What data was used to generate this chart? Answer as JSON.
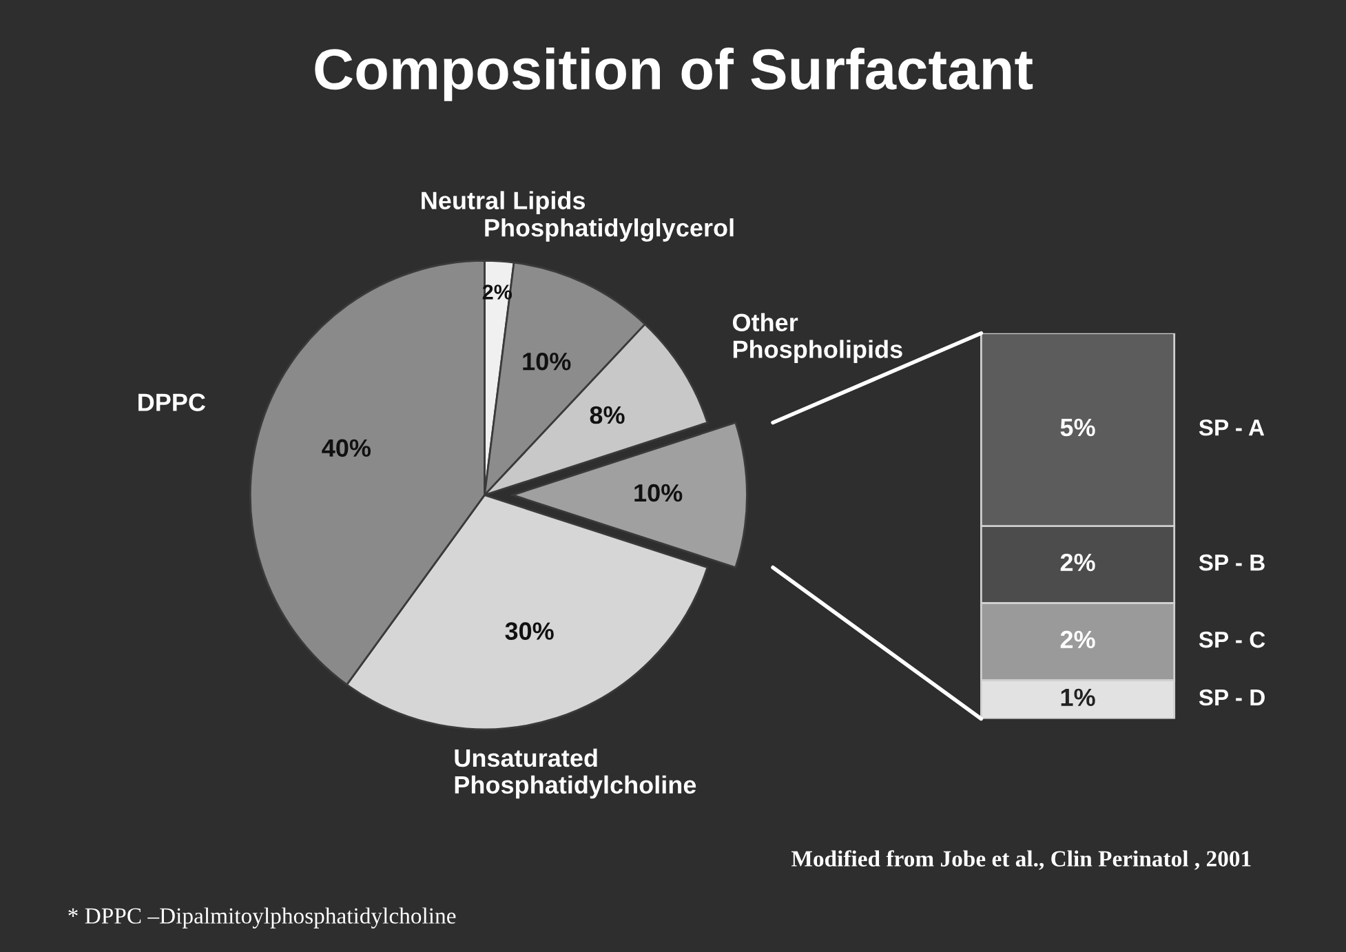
{
  "chart_data": [
    {
      "type": "pie",
      "title": "Composition of Surfactant",
      "categories": [
        "Neutral Lipids",
        "Phosphatidylglycerol",
        "Other\nPhospholipids",
        null,
        "Unsaturated\nPhosphatidylcholine",
        "DPPC"
      ],
      "values": [
        2,
        10,
        8,
        10,
        30,
        40
      ],
      "value_labels": [
        "2%",
        "10%",
        "8%",
        "10%",
        "30%",
        "40%"
      ],
      "colors": [
        "#f0f0f0",
        "#8c8c8c",
        "#c8c8c8",
        "#a0a0a0",
        "#d6d6d6",
        "#8a8a8a"
      ],
      "legend": false,
      "annotations": [
        "Modified from Jobe et al., Clin Perinatol , 2001",
        "* DPPC –Dipalmitoylphosphatidylcholine"
      ]
    },
    {
      "type": "bar",
      "stacked": true,
      "categories": [
        null
      ],
      "legend": false,
      "tick_labels": false,
      "series": [
        {
          "name": "SP - D",
          "color": "#e2e2e2",
          "values": [
            1
          ],
          "value_labels": [
            "1%"
          ]
        },
        {
          "name": "SP - C",
          "color": "#9a9a9a",
          "values": [
            2
          ],
          "value_labels": [
            "2%"
          ]
        },
        {
          "name": "SP - B",
          "color": "#4c4c4c",
          "values": [
            2
          ],
          "value_labels": [
            "2%"
          ]
        },
        {
          "name": "SP - A",
          "color": "#5c5c5c",
          "values": [
            5
          ],
          "value_labels": [
            "5%"
          ]
        }
      ]
    }
  ]
}
